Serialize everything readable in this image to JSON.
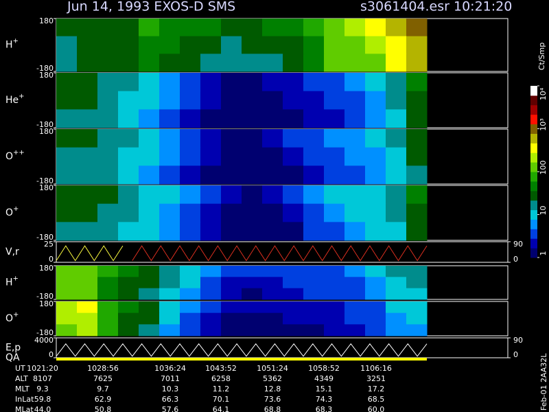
{
  "header": {
    "title": "Jun 14, 1993   EXOS-D SMS",
    "file": "s3061404.esr  10:21:20",
    "side_note": "Feb-01 2AA32L"
  },
  "chart_data": [
    {
      "type": "heatmap",
      "label": {
        "base": "H",
        "sup": "+"
      },
      "ylim": [
        -180,
        180
      ],
      "yticks": [
        180,
        -180
      ],
      "z": [
        [
          25,
          30,
          35,
          30,
          60,
          50,
          40,
          40,
          35,
          35,
          40,
          50,
          80,
          150,
          200,
          300,
          600,
          800
        ],
        [
          20,
          25,
          30,
          25,
          50,
          40,
          30,
          25,
          20,
          25,
          30,
          30,
          50,
          120,
          150,
          200,
          400,
          600
        ],
        [
          20,
          25,
          30,
          25,
          40,
          30,
          25,
          20,
          15,
          15,
          20,
          30,
          40,
          100,
          100,
          150,
          300,
          500
        ]
      ]
    },
    {
      "type": "heatmap",
      "label": {
        "base": "He",
        "sup": "+"
      },
      "ylim": [
        -180,
        180
      ],
      "yticks": [
        180,
        -180
      ],
      "z": [
        [
          30,
          30,
          20,
          15,
          10,
          6,
          4,
          2,
          1.5,
          1.5,
          2,
          2,
          3,
          4,
          5,
          8,
          20,
          40
        ],
        [
          25,
          25,
          20,
          12,
          8,
          5,
          3,
          2,
          1.2,
          1.2,
          1.5,
          2,
          2,
          3,
          4,
          6,
          15,
          30
        ],
        [
          20,
          20,
          15,
          10,
          6,
          4,
          2,
          1.5,
          1,
          1,
          1.2,
          1.5,
          2,
          2,
          3,
          5,
          10,
          25
        ]
      ]
    },
    {
      "type": "heatmap",
      "label": {
        "base": "O",
        "sup": "++"
      },
      "ylim": [
        -180,
        180
      ],
      "yticks": [
        180,
        -180
      ],
      "z": [
        [
          25,
          25,
          20,
          15,
          10,
          6,
          4,
          2,
          1.5,
          1.5,
          2,
          3,
          4,
          5,
          6,
          8,
          15,
          30
        ],
        [
          20,
          20,
          18,
          12,
          8,
          5,
          3,
          2,
          1.2,
          1.2,
          1.5,
          2,
          3,
          4,
          5,
          6,
          12,
          25
        ],
        [
          20,
          18,
          15,
          10,
          6,
          4,
          2,
          1.5,
          1,
          1,
          1.2,
          1.5,
          2,
          3,
          4,
          5,
          10,
          20
        ]
      ]
    },
    {
      "type": "heatmap",
      "label": {
        "base": "O",
        "sup": "+"
      },
      "ylim": [
        -180,
        180
      ],
      "yticks": [
        180,
        -180
      ],
      "z": [
        [
          30,
          30,
          25,
          18,
          12,
          8,
          5,
          3,
          2,
          1.5,
          2,
          3,
          5,
          8,
          10,
          12,
          20,
          40
        ],
        [
          25,
          25,
          20,
          15,
          10,
          6,
          4,
          2,
          1.5,
          1.2,
          1.5,
          2,
          4,
          6,
          8,
          10,
          15,
          30
        ],
        [
          20,
          20,
          18,
          12,
          8,
          5,
          3,
          2,
          1.2,
          1,
          1.2,
          1.5,
          3,
          4,
          6,
          8,
          12,
          25
        ]
      ]
    },
    {
      "type": "line",
      "label": {
        "base": "V,r",
        "sup": ""
      },
      "ylim": [
        0,
        25
      ],
      "yticks": [
        25,
        0
      ],
      "y2lim": [
        0,
        90
      ],
      "y2ticks": [
        90,
        0
      ],
      "series": [
        {
          "color": "#ffff40",
          "values": [
            2,
            20,
            2,
            20,
            2,
            20,
            2,
            20,
            null,
            null,
            null,
            null,
            null,
            null,
            null,
            null,
            null,
            null,
            null,
            null,
            null,
            null,
            null,
            null,
            null,
            null,
            null,
            null,
            null,
            null,
            null,
            null,
            null,
            null,
            null,
            null,
            null,
            null,
            null,
            null
          ]
        },
        {
          "color": "#e03020",
          "values": [
            null,
            null,
            null,
            null,
            null,
            null,
            null,
            null,
            2,
            20,
            2,
            20,
            2,
            20,
            2,
            20,
            2,
            20,
            2,
            20,
            2,
            20,
            2,
            20,
            2,
            20,
            2,
            20,
            2,
            20,
            2,
            20,
            2,
            20,
            2,
            20,
            2,
            20,
            2,
            20
          ]
        }
      ]
    },
    {
      "type": "heatmap",
      "label": {
        "base": "H",
        "sup": "+"
      },
      "ylim": [
        -180,
        180
      ],
      "yticks": [
        180,
        -180
      ],
      "z": [
        [
          150,
          150,
          60,
          40,
          30,
          20,
          10,
          5,
          3,
          3,
          3,
          3,
          4,
          4,
          5,
          8,
          15,
          20
        ],
        [
          120,
          150,
          50,
          35,
          25,
          15,
          8,
          4,
          2,
          2,
          2,
          3,
          3,
          4,
          4,
          6,
          12,
          15
        ],
        [
          100,
          120,
          40,
          30,
          20,
          12,
          6,
          3,
          2,
          1.5,
          2,
          2,
          3,
          3,
          4,
          5,
          10,
          12
        ]
      ]
    },
    {
      "type": "heatmap",
      "label": {
        "base": "O",
        "sup": "+"
      },
      "ylim": [
        -180,
        180
      ],
      "yticks": [
        180,
        -180
      ],
      "z": [
        [
          200,
          300,
          80,
          40,
          30,
          10,
          5,
          3,
          2,
          2,
          2,
          2,
          2,
          2,
          3,
          4,
          8,
          10
        ],
        [
          180,
          250,
          70,
          35,
          25,
          8,
          4,
          2,
          1.5,
          1.5,
          1.5,
          2,
          2,
          2,
          3,
          3,
          6,
          8
        ],
        [
          150,
          200,
          60,
          30,
          20,
          6,
          3,
          2,
          1.2,
          1.2,
          1.2,
          1.5,
          1.5,
          2,
          2,
          3,
          5,
          6
        ]
      ]
    },
    {
      "type": "line",
      "label": {
        "base": "E,p",
        "sup": ""
      },
      "label2": "QA",
      "ylim": [
        0,
        4000
      ],
      "yticks": [
        4000,
        0
      ],
      "y2lim": [
        0,
        90
      ],
      "y2ticks": [
        90,
        0
      ],
      "series": [
        {
          "color": "#ffffff",
          "values": [
            300,
            2800,
            300,
            2800,
            300,
            2800,
            300,
            2800,
            300,
            2800,
            300,
            2800,
            300,
            2800,
            300,
            2800,
            300,
            2800,
            300,
            2800,
            300,
            2800,
            300,
            2800,
            300,
            2800,
            300,
            2800,
            300,
            2800,
            300,
            2800,
            300,
            2800,
            300,
            2800,
            300,
            2800,
            300,
            2800
          ]
        }
      ]
    },
    {
      "type": "colorbar",
      "label": "Ct/Smp",
      "zlim": [
        1,
        10000
      ],
      "log": true,
      "colors": [
        "#000070",
        "#0000b0",
        "#0040e0",
        "#0090ff",
        "#00c8d8",
        "#008c8c",
        "#005a00",
        "#008000",
        "#20a800",
        "#60cc00",
        "#b0ee00",
        "#ffff00",
        "#b4b400",
        "#806000",
        "#ff1000",
        "#a00000",
        "#600000",
        "#ffffff"
      ],
      "ticks": [
        1,
        10,
        100,
        {
          "value": 1000,
          "label": "10³"
        },
        {
          "value": 10000,
          "label": "10⁴"
        }
      ]
    }
  ],
  "table": {
    "row_labels": [
      "UT",
      "ALT",
      "MLT",
      "InLat",
      "MLat"
    ],
    "rows": [
      [
        "1021:20",
        "1028:56",
        "1036:24",
        "1043:52",
        "1051:24",
        "1058:52",
        "1106:16"
      ],
      [
        "8107",
        "7625",
        "7011",
        "6258",
        "5362",
        "4349",
        "3251"
      ],
      [
        "9.3",
        "9.7",
        "10.3",
        "11.2",
        "12.8",
        "15.1",
        "17.2"
      ],
      [
        "59.8",
        "62.9",
        "66.3",
        "70.1",
        "73.6",
        "74.3",
        "68.5"
      ],
      [
        "44.0",
        "50.8",
        "57.6",
        "64.1",
        "68.8",
        "68.3",
        "60.0"
      ]
    ]
  }
}
